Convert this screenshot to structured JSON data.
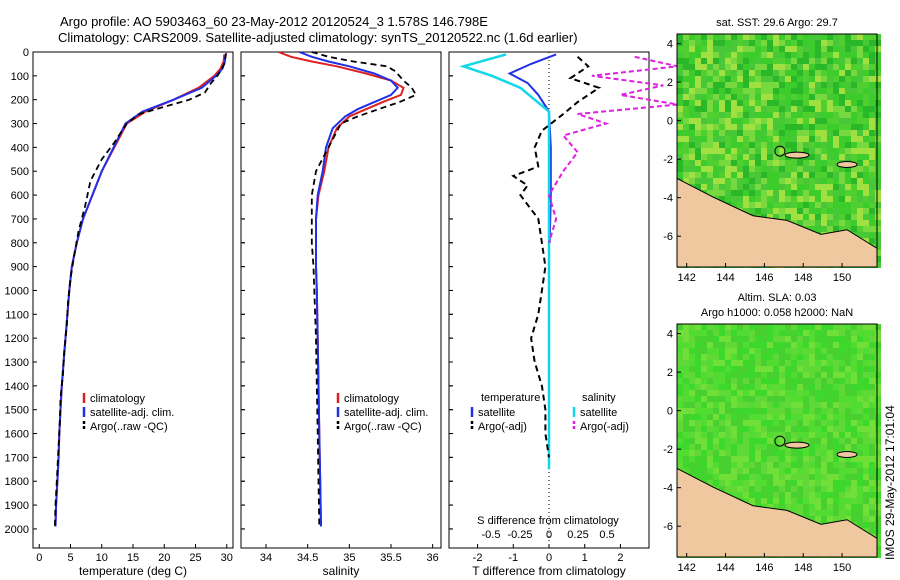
{
  "header": {
    "title_line1": "Argo profile: AO 5903463_60 23-May-2012 20120524_3 1.578S 146.798E",
    "title_line2": "Climatology: CARS2009. Satellite-adjusted climatology: synTS_20120522.nc (1.6d earlier)"
  },
  "side_stamp": "IMOS 29-May-2012 17:01:04",
  "colors": {
    "climatology": "#e02020",
    "satellite": "#2030e8",
    "argo": "#000000",
    "sal_satellite": "#10d8e8",
    "sal_argo": "#e020e0",
    "land": "#f0c8a0"
  },
  "chart_data": [
    {
      "type": "line",
      "panel": "temperature",
      "xlabel": "temperature (deg C)",
      "ylabel": "",
      "xlim": [
        -1,
        31
      ],
      "ylim": [
        2080,
        0
      ],
      "xticks": [
        "0",
        "5",
        "10",
        "15",
        "20",
        "25",
        "30"
      ],
      "yticks": [
        "0",
        "100",
        "200",
        "300",
        "400",
        "500",
        "600",
        "700",
        "800",
        "900",
        "1000",
        "1100",
        "1200",
        "1300",
        "1400",
        "1500",
        "1600",
        "1700",
        "1800",
        "1900",
        "2000"
      ],
      "legend": [
        "climatology",
        "satellite-adj. clim.",
        "Argo(..raw -QC)"
      ],
      "series": [
        {
          "name": "climatology",
          "points": [
            [
              29.6,
              10
            ],
            [
              29.5,
              40
            ],
            [
              29.0,
              70
            ],
            [
              28.0,
              100
            ],
            [
              25.5,
              150
            ],
            [
              21.5,
              200
            ],
            [
              17.0,
              250
            ],
            [
              14.0,
              300
            ],
            [
              12.0,
              400
            ],
            [
              10.0,
              500
            ],
            [
              8.5,
              600
            ],
            [
              7.0,
              700
            ],
            [
              6.0,
              800
            ],
            [
              5.2,
              900
            ],
            [
              4.8,
              1000
            ],
            [
              4.5,
              1100
            ],
            [
              4.2,
              1200
            ],
            [
              3.9,
              1300
            ],
            [
              3.6,
              1400
            ],
            [
              3.4,
              1500
            ],
            [
              3.2,
              1600
            ],
            [
              3.1,
              1700
            ],
            [
              2.9,
              1800
            ],
            [
              2.7,
              1900
            ],
            [
              2.6,
              1990
            ]
          ]
        },
        {
          "name": "satellite-adj. clim.",
          "points": [
            [
              29.8,
              10
            ],
            [
              29.7,
              40
            ],
            [
              29.3,
              70
            ],
            [
              28.3,
              100
            ],
            [
              26.0,
              150
            ],
            [
              21.5,
              200
            ],
            [
              16.5,
              250
            ],
            [
              13.8,
              300
            ],
            [
              11.9,
              400
            ],
            [
              10.0,
              500
            ],
            [
              8.5,
              600
            ],
            [
              7.0,
              700
            ],
            [
              6.0,
              800
            ],
            [
              5.2,
              900
            ],
            [
              4.8,
              1000
            ],
            [
              4.5,
              1100
            ],
            [
              4.2,
              1200
            ],
            [
              3.9,
              1300
            ],
            [
              3.6,
              1400
            ],
            [
              3.4,
              1500
            ],
            [
              3.2,
              1600
            ],
            [
              3.1,
              1700
            ],
            [
              2.9,
              1800
            ],
            [
              2.7,
              1900
            ],
            [
              2.6,
              1990
            ]
          ]
        },
        {
          "name": "Argo(..raw -QC)",
          "points": [
            [
              29.9,
              5
            ],
            [
              29.6,
              50
            ],
            [
              29.0,
              80
            ],
            [
              28.5,
              100
            ],
            [
              27.5,
              130
            ],
            [
              26.5,
              170
            ],
            [
              24.0,
              200
            ],
            [
              20.0,
              230
            ],
            [
              16.0,
              260
            ],
            [
              14.0,
              300
            ],
            [
              12.0,
              380
            ],
            [
              10.0,
              450
            ],
            [
              8.2,
              540
            ],
            [
              7.3,
              650
            ],
            [
              6.3,
              750
            ],
            [
              5.6,
              850
            ],
            [
              5.0,
              950
            ],
            [
              4.6,
              1050
            ],
            [
              4.4,
              1150
            ],
            [
              4.0,
              1250
            ],
            [
              3.8,
              1350
            ],
            [
              3.4,
              1450
            ],
            [
              3.3,
              1550
            ],
            [
              3.1,
              1650
            ],
            [
              2.8,
              1800
            ],
            [
              2.6,
              1900
            ],
            [
              2.5,
              1990
            ]
          ]
        }
      ]
    },
    {
      "type": "line",
      "panel": "salinity",
      "xlabel": "salinity",
      "xlim": [
        33.7,
        36.1
      ],
      "ylim": [
        2080,
        0
      ],
      "xticks": [
        "34",
        "34.5",
        "35",
        "35.5",
        "36"
      ],
      "legend": [
        "climatology",
        "satellite-adj. clim.",
        "Argo(..raw -QC)"
      ],
      "series": [
        {
          "name": "climatology",
          "points": [
            [
              34.15,
              0
            ],
            [
              34.3,
              20
            ],
            [
              34.55,
              40
            ],
            [
              34.85,
              60
            ],
            [
              35.2,
              90
            ],
            [
              35.5,
              120
            ],
            [
              35.65,
              150
            ],
            [
              35.62,
              180
            ],
            [
              35.4,
              210
            ],
            [
              35.2,
              240
            ],
            [
              35.0,
              270
            ],
            [
              34.85,
              320
            ],
            [
              34.75,
              400
            ],
            [
              34.7,
              500
            ],
            [
              34.63,
              600
            ],
            [
              34.6,
              700
            ],
            [
              34.6,
              800
            ],
            [
              34.6,
              900
            ],
            [
              34.61,
              1000
            ],
            [
              34.62,
              1200
            ],
            [
              34.63,
              1400
            ],
            [
              34.64,
              1600
            ],
            [
              34.65,
              1800
            ],
            [
              34.66,
              1990
            ]
          ]
        },
        {
          "name": "satellite-adj. clim.",
          "points": [
            [
              34.4,
              0
            ],
            [
              34.55,
              20
            ],
            [
              34.75,
              40
            ],
            [
              35.0,
              60
            ],
            [
              35.3,
              90
            ],
            [
              35.5,
              120
            ],
            [
              35.58,
              150
            ],
            [
              35.5,
              180
            ],
            [
              35.3,
              210
            ],
            [
              35.1,
              240
            ],
            [
              34.95,
              270
            ],
            [
              34.8,
              320
            ],
            [
              34.72,
              400
            ],
            [
              34.68,
              500
            ],
            [
              34.62,
              600
            ],
            [
              34.6,
              700
            ],
            [
              34.6,
              800
            ],
            [
              34.6,
              900
            ],
            [
              34.61,
              1000
            ],
            [
              34.62,
              1200
            ],
            [
              34.63,
              1400
            ],
            [
              34.64,
              1600
            ],
            [
              34.65,
              1800
            ],
            [
              34.66,
              1990
            ]
          ]
        },
        {
          "name": "Argo(..raw -QC)",
          "points": [
            [
              34.55,
              0
            ],
            [
              34.75,
              20
            ],
            [
              35.05,
              40
            ],
            [
              35.45,
              60
            ],
            [
              35.55,
              80
            ],
            [
              35.6,
              100
            ],
            [
              35.65,
              120
            ],
            [
              35.75,
              150
            ],
            [
              35.8,
              180
            ],
            [
              35.6,
              210
            ],
            [
              35.35,
              240
            ],
            [
              35.1,
              270
            ],
            [
              34.9,
              300
            ],
            [
              34.75,
              400
            ],
            [
              34.6,
              500
            ],
            [
              34.55,
              600
            ],
            [
              34.55,
              700
            ],
            [
              34.55,
              800
            ],
            [
              34.57,
              900
            ],
            [
              34.58,
              1000
            ],
            [
              34.6,
              1200
            ],
            [
              34.61,
              1400
            ],
            [
              34.62,
              1600
            ],
            [
              34.63,
              1800
            ],
            [
              34.64,
              1990
            ]
          ]
        }
      ]
    },
    {
      "type": "line",
      "panel": "difference",
      "xlabel_top": "S difference from climatology",
      "xticks_top": [
        "-0.5",
        "-0.25",
        "0",
        "0.25",
        "0.5"
      ],
      "xlabel": "T difference from climatology",
      "xlim": [
        -2.8,
        2.8
      ],
      "ylim": [
        2080,
        0
      ],
      "xticks": [
        "-2",
        "-1",
        "0",
        "1",
        "2"
      ],
      "legend_left_title": "temperature",
      "legend_right_title": "salinity",
      "legend": [
        "satellite",
        "Argo(-adj)",
        "satellite",
        "Argo(-adj)"
      ],
      "series": [
        {
          "name": "satellite",
          "quantity": "temperature",
          "points": [
            [
              0.2,
              10
            ],
            [
              -0.5,
              50
            ],
            [
              -1.1,
              90
            ],
            [
              -0.6,
              130
            ],
            [
              -0.3,
              180
            ],
            [
              0.0,
              250
            ],
            [
              0.05,
              400
            ],
            [
              0.05,
              600
            ],
            [
              0.02,
              800
            ]
          ]
        },
        {
          "name": "satellite",
          "quantity": "salinity",
          "points": [
            [
              -0.3,
              10
            ],
            [
              -0.6,
              60
            ],
            [
              -0.4,
              100
            ],
            [
              -0.2,
              150
            ],
            [
              -0.1,
              200
            ],
            [
              0.0,
              250
            ],
            [
              0.0,
              400
            ],
            [
              0.0,
              600
            ],
            [
              0.0,
              1000
            ],
            [
              0.0,
              1400
            ],
            [
              0.0,
              1750
            ]
          ]
        },
        {
          "name": "Argo(-adj)",
          "quantity": "temperature",
          "points": [
            [
              0.8,
              20
            ],
            [
              1.1,
              60
            ],
            [
              0.6,
              110
            ],
            [
              1.4,
              150
            ],
            [
              0.8,
              210
            ],
            [
              0.4,
              260
            ],
            [
              -0.2,
              330
            ],
            [
              -0.4,
              400
            ],
            [
              -0.3,
              480
            ],
            [
              -1.0,
              520
            ],
            [
              -0.6,
              560
            ],
            [
              -0.8,
              600
            ],
            [
              -0.3,
              700
            ],
            [
              -0.2,
              800
            ],
            [
              -0.1,
              900
            ],
            [
              -0.2,
              1000
            ],
            [
              -0.3,
              1100
            ],
            [
              -0.5,
              1200
            ],
            [
              -0.4,
              1300
            ],
            [
              -0.2,
              1400
            ],
            [
              -0.1,
              1500
            ],
            [
              -0.1,
              1600
            ],
            [
              0.0,
              1700
            ]
          ]
        },
        {
          "name": "Argo(-adj)",
          "quantity": "salinity",
          "points": [
            [
              0.6,
              20
            ],
            [
              0.9,
              60
            ],
            [
              0.3,
              100
            ],
            [
              0.8,
              140
            ],
            [
              0.5,
              180
            ],
            [
              0.9,
              220
            ],
            [
              0.2,
              260
            ],
            [
              0.4,
              300
            ],
            [
              0.1,
              350
            ],
            [
              0.2,
              420
            ],
            [
              0.1,
              500
            ],
            [
              0.0,
              600
            ],
            [
              0.05,
              700
            ],
            [
              0.0,
              800
            ]
          ]
        }
      ]
    }
  ],
  "maps": [
    {
      "title": "sat. SST: 29.6 Argo: 29.7",
      "xticks": [
        "142",
        "144",
        "146",
        "148",
        "150"
      ],
      "yticks": [
        "4",
        "2",
        "0",
        "-2",
        "-4",
        "-6"
      ]
    },
    {
      "title_line1": "Altim. SLA: 0.03",
      "title_line2": "Argo h1000: 0.058 h2000: NaN",
      "xticks": [
        "142",
        "144",
        "146",
        "148",
        "150"
      ],
      "yticks": [
        "4",
        "2",
        "0",
        "-2",
        "-4",
        "-6"
      ]
    }
  ]
}
